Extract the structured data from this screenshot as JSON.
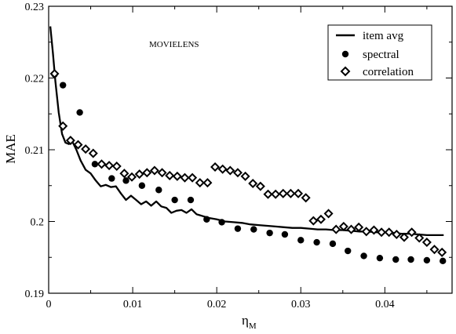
{
  "chart_data": {
    "type": "scatter",
    "title": "",
    "annotation": "MOVIELENS",
    "xlabel_main": "η",
    "xlabel_sub": "M",
    "ylabel": "MAE",
    "xlim": [
      0,
      0.048
    ],
    "ylim": [
      0.19,
      0.23
    ],
    "xticks": [
      0,
      0.01,
      0.02,
      0.03,
      0.04
    ],
    "xtick_labels": [
      "0",
      "0.01",
      "0.02",
      "0.03",
      "0.04"
    ],
    "yticks": [
      0.19,
      0.2,
      0.21,
      0.22,
      0.23
    ],
    "ytick_labels": [
      "0.19",
      "0.2",
      "0.21",
      "0.22",
      "0.23"
    ],
    "grid": false,
    "legend_position": "top-right",
    "series": [
      {
        "name": "item avg",
        "kind": "line",
        "x": [
          0.0002,
          0.0005,
          0.0008,
          0.0012,
          0.0016,
          0.002,
          0.0024,
          0.0028,
          0.0033,
          0.0038,
          0.0044,
          0.005,
          0.0056,
          0.0062,
          0.0068,
          0.0074,
          0.008,
          0.0086,
          0.0092,
          0.0098,
          0.0104,
          0.011,
          0.0116,
          0.0122,
          0.0128,
          0.0134,
          0.014,
          0.0146,
          0.0152,
          0.0158,
          0.0164,
          0.017,
          0.0176,
          0.0182,
          0.019,
          0.02,
          0.021,
          0.022,
          0.023,
          0.024,
          0.025,
          0.026,
          0.027,
          0.028,
          0.029,
          0.03,
          0.031,
          0.032,
          0.033,
          0.034,
          0.035,
          0.036,
          0.037,
          0.038,
          0.039,
          0.04,
          0.041,
          0.042,
          0.043,
          0.044,
          0.045,
          0.046,
          0.047
        ],
        "y": [
          0.2272,
          0.2235,
          0.2195,
          0.2152,
          0.2122,
          0.211,
          0.2108,
          0.2112,
          0.21,
          0.2085,
          0.2072,
          0.2067,
          0.2057,
          0.2049,
          0.2051,
          0.2048,
          0.2049,
          0.2039,
          0.203,
          0.2036,
          0.203,
          0.2024,
          0.2028,
          0.2022,
          0.2028,
          0.2021,
          0.2019,
          0.2012,
          0.2015,
          0.2016,
          0.2012,
          0.2017,
          0.201,
          0.2008,
          0.2005,
          0.2003,
          0.2,
          0.1999,
          0.1998,
          0.1996,
          0.1995,
          0.1994,
          0.1993,
          0.1992,
          0.1991,
          0.1991,
          0.199,
          0.1989,
          0.1989,
          0.1988,
          0.1988,
          0.1987,
          0.1986,
          0.1986,
          0.1985,
          0.1985,
          0.1984,
          0.1983,
          0.1983,
          0.1982,
          0.1981,
          0.1981,
          0.1981
        ]
      },
      {
        "name": "spectral",
        "kind": "dot",
        "x": [
          0.0007,
          0.0017,
          0.0037,
          0.0055,
          0.0075,
          0.0092,
          0.0111,
          0.0131,
          0.015,
          0.0169,
          0.0188,
          0.0206,
          0.0225,
          0.0244,
          0.0263,
          0.0281,
          0.03,
          0.0319,
          0.0338,
          0.0356,
          0.0375,
          0.0394,
          0.0413,
          0.0431,
          0.045,
          0.0469
        ],
        "y": [
          0.2205,
          0.219,
          0.2152,
          0.208,
          0.206,
          0.2057,
          0.205,
          0.2044,
          0.203,
          0.203,
          0.2003,
          0.1999,
          0.199,
          0.1989,
          0.1984,
          0.1982,
          0.1974,
          0.1971,
          0.1969,
          0.1959,
          0.1952,
          0.1949,
          0.1947,
          0.1947,
          0.1946,
          0.1945
        ]
      },
      {
        "name": "correlation",
        "kind": "diamond",
        "x": [
          0.0007,
          0.0017,
          0.0026,
          0.0035,
          0.0044,
          0.0053,
          0.0063,
          0.0072,
          0.0081,
          0.009,
          0.0099,
          0.0108,
          0.0117,
          0.0126,
          0.0135,
          0.0144,
          0.0153,
          0.0162,
          0.0171,
          0.018,
          0.0189,
          0.0198,
          0.0207,
          0.0216,
          0.0225,
          0.0234,
          0.0243,
          0.0252,
          0.0261,
          0.027,
          0.0279,
          0.0288,
          0.0297,
          0.0306,
          0.0315,
          0.0324,
          0.0333,
          0.0342,
          0.0351,
          0.036,
          0.0369,
          0.0378,
          0.0387,
          0.0396,
          0.0405,
          0.0414,
          0.0423,
          0.0432,
          0.0441,
          0.045,
          0.0459,
          0.0468
        ],
        "y": [
          0.2206,
          0.2133,
          0.2113,
          0.2107,
          0.2101,
          0.2095,
          0.208,
          0.2078,
          0.2077,
          0.2067,
          0.2062,
          0.2066,
          0.2068,
          0.2071,
          0.2068,
          0.2064,
          0.2063,
          0.2061,
          0.2061,
          0.2054,
          0.2054,
          0.2076,
          0.2073,
          0.2071,
          0.2068,
          0.2063,
          0.2053,
          0.2049,
          0.2038,
          0.2038,
          0.2039,
          0.2039,
          0.2039,
          0.2033,
          0.2001,
          0.2003,
          0.2011,
          0.1989,
          0.1993,
          0.1989,
          0.1992,
          0.1986,
          0.1988,
          0.1985,
          0.1985,
          0.1982,
          0.1978,
          0.1985,
          0.1977,
          0.1971,
          0.1961,
          0.1957
        ]
      }
    ]
  }
}
